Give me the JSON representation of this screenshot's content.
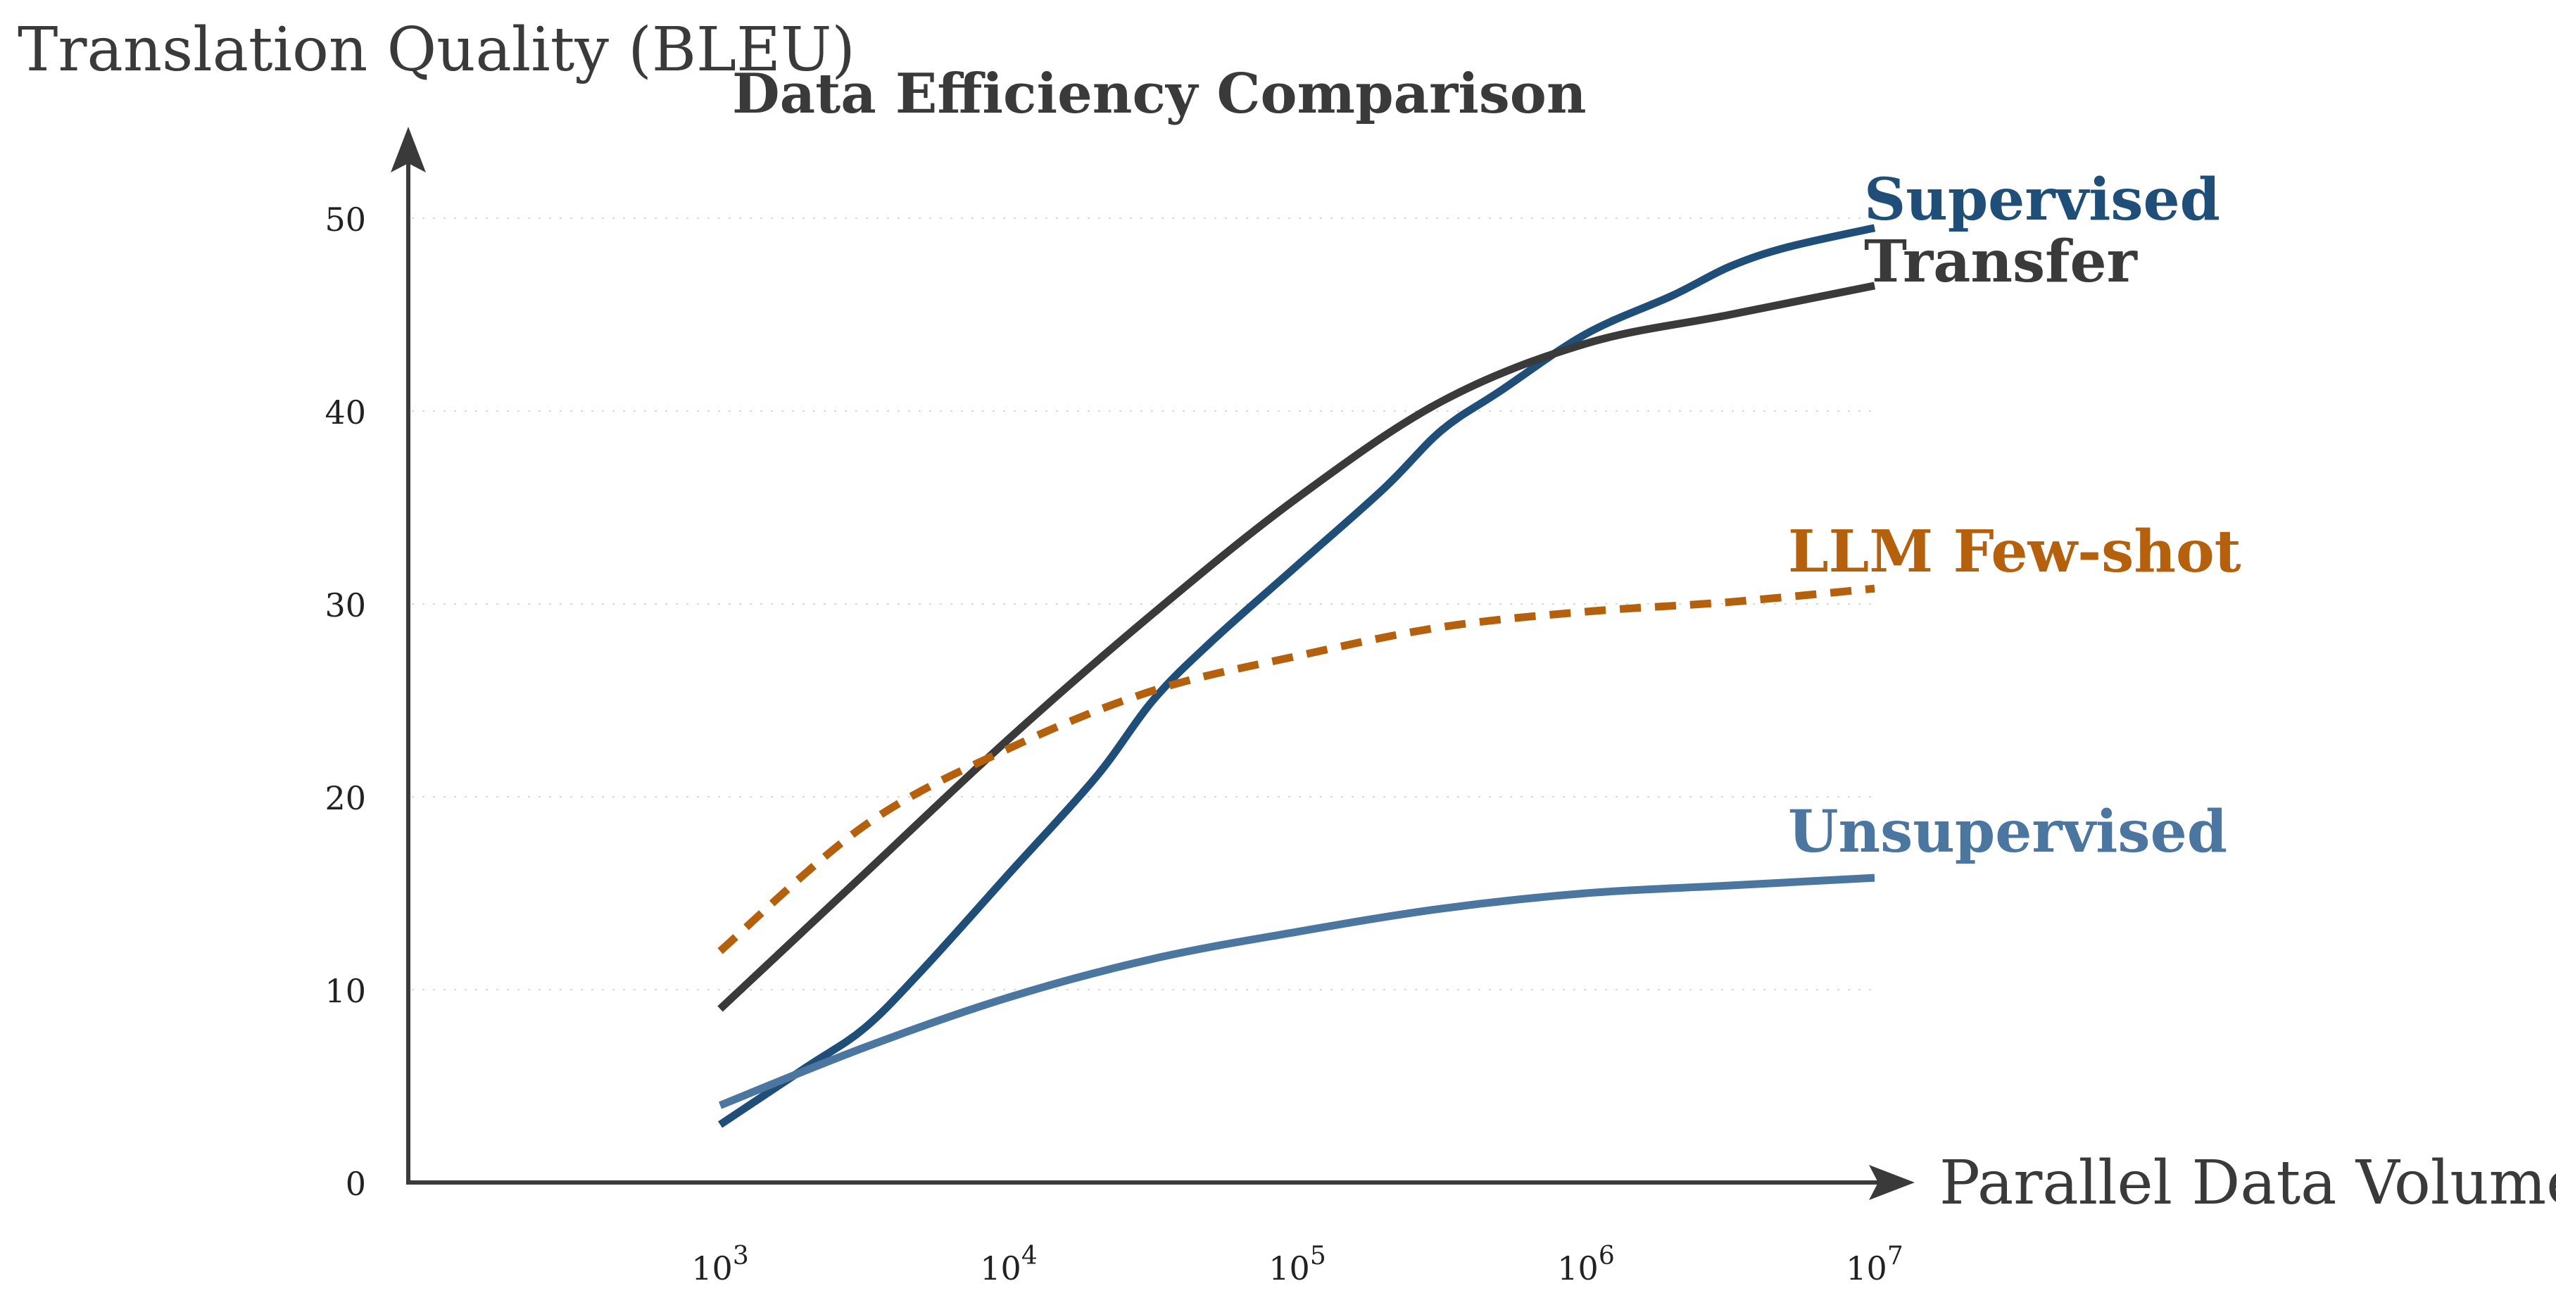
{
  "chart_data": {
    "type": "line",
    "title": "Data Efficiency Comparison",
    "xlabel": "Parallel Data Volume",
    "ylabel": "Translation Quality (BLEU)",
    "x_scale": "log",
    "xlim": [
      1000,
      10000000
    ],
    "ylim": [
      0,
      50
    ],
    "y_ticks": [
      0,
      10,
      20,
      30,
      40,
      50
    ],
    "x_ticks": [
      {
        "value": 1000,
        "base": "10",
        "exp": "3"
      },
      {
        "value": 10000,
        "base": "10",
        "exp": "4"
      },
      {
        "value": 100000,
        "base": "10",
        "exp": "5"
      },
      {
        "value": 1000000,
        "base": "10",
        "exp": "6"
      },
      {
        "value": 10000000,
        "base": "10",
        "exp": "7"
      }
    ],
    "grid": true,
    "legend": "inline labels at line ends",
    "series": [
      {
        "name": "Supervised",
        "color": "#1f4e79",
        "dash": "solid",
        "x": [
          1000,
          2000,
          3160,
          5000,
          10000,
          20000,
          31600,
          50000,
          100000,
          200000,
          316000,
          500000,
          1000000,
          2000000,
          3160000,
          5000000,
          10000000
        ],
        "y": [
          3,
          6,
          8,
          11,
          16,
          21,
          25,
          28,
          32,
          36,
          39,
          41,
          44,
          46,
          47.5,
          48.5,
          49.5
        ]
      },
      {
        "name": "Transfer",
        "color": "#3a3a3a",
        "dash": "solid",
        "x": [
          1000,
          3160,
          10000,
          31600,
          100000,
          316000,
          1000000,
          3160000,
          10000000
        ],
        "y": [
          9,
          16,
          23,
          29.5,
          35.5,
          40.5,
          43.5,
          45,
          46.5
        ]
      },
      {
        "name": "LLM Few-shot",
        "color": "#b5600d",
        "dash": "dashed",
        "x": [
          1000,
          3160,
          10000,
          31600,
          100000,
          316000,
          1000000,
          3160000,
          10000000
        ],
        "y": [
          12,
          18.5,
          22.5,
          25.5,
          27.3,
          28.8,
          29.6,
          30.1,
          30.8
        ]
      },
      {
        "name": "Unsupervised",
        "color": "#4a76a0",
        "dash": "solid",
        "x": [
          1000,
          3160,
          10000,
          31600,
          100000,
          316000,
          1000000,
          3160000,
          10000000
        ],
        "y": [
          4,
          7,
          9.6,
          11.6,
          13,
          14.2,
          15,
          15.4,
          15.8
        ]
      }
    ]
  }
}
